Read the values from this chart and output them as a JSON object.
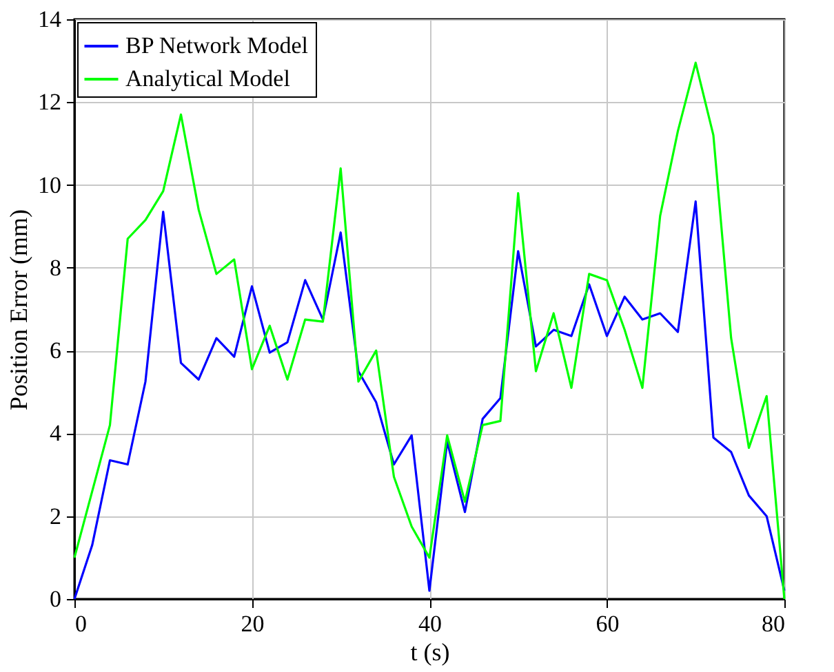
{
  "chart_data": {
    "type": "line",
    "xlabel": "t (s)",
    "ylabel": "Position Error (mm)",
    "x": [
      0,
      2,
      4,
      6,
      8,
      10,
      12,
      14,
      16,
      18,
      20,
      22,
      24,
      26,
      28,
      30,
      32,
      34,
      36,
      38,
      40,
      42,
      44,
      46,
      48,
      50,
      52,
      54,
      56,
      58,
      60,
      62,
      64,
      66,
      68,
      70,
      72,
      74,
      76,
      78,
      80
    ],
    "series": [
      {
        "name": "BP Network Model",
        "color": "#0000ff",
        "values": [
          0,
          1.3,
          3.35,
          3.25,
          5.25,
          9.35,
          5.7,
          5.3,
          6.3,
          5.85,
          7.55,
          5.95,
          6.2,
          7.7,
          6.75,
          8.85,
          5.5,
          4.75,
          3.25,
          3.95,
          0.2,
          3.8,
          2.1,
          4.35,
          4.85,
          8.4,
          6.1,
          6.5,
          6.35,
          7.6,
          6.35,
          7.3,
          6.75,
          6.9,
          6.45,
          9.6,
          3.9,
          3.55,
          2.5,
          2.0,
          0.2
        ]
      },
      {
        "name": "Analytical Model",
        "color": "#00ff00",
        "values": [
          1.0,
          2.6,
          4.2,
          8.7,
          9.15,
          9.85,
          11.7,
          9.4,
          7.85,
          8.2,
          5.55,
          6.6,
          5.3,
          6.75,
          6.7,
          10.4,
          5.25,
          6.0,
          2.95,
          1.75,
          1.0,
          3.95,
          2.35,
          4.2,
          4.3,
          9.8,
          5.5,
          6.9,
          5.1,
          7.85,
          7.7,
          6.5,
          5.1,
          9.25,
          11.3,
          12.95,
          11.2,
          6.3,
          3.65,
          4.9,
          0
        ]
      }
    ],
    "xlim": [
      0,
      80
    ],
    "xticks": [
      0,
      20,
      40,
      60,
      80
    ],
    "ylim": [
      0,
      14
    ],
    "yticks": [
      0,
      2,
      4,
      6,
      8,
      10,
      12,
      14
    ],
    "grid": true,
    "legend": "top left",
    "marker": "none",
    "line_style": "solid"
  }
}
